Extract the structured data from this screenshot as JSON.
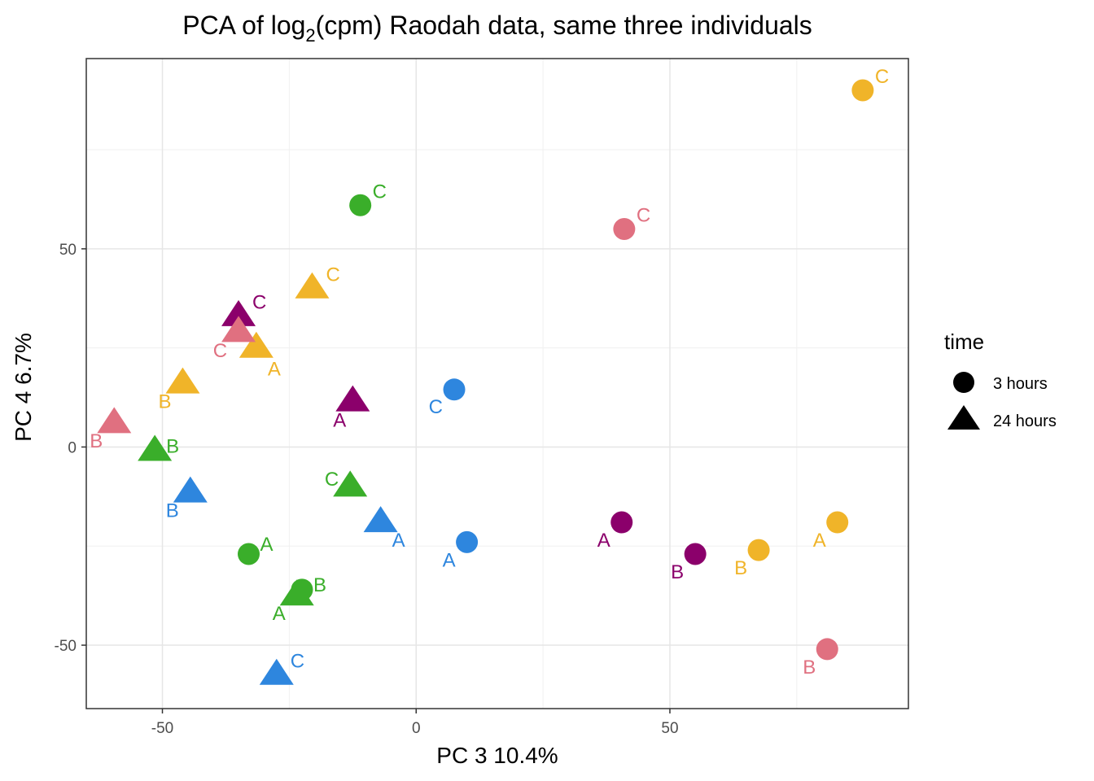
{
  "chart_data": {
    "type": "scatter",
    "title": "PCA of log2(cpm)  Raodah data, same three individuals",
    "title_parts": {
      "before": "PCA of log",
      "subscript": "2",
      "after": "(cpm)  Raodah data, same three individuals"
    },
    "xlabel": "PC 3 10.4%",
    "ylabel": "PC 4 6.7%",
    "xlim": [
      -65,
      97
    ],
    "ylim": [
      -66,
      98
    ],
    "x_ticks": [
      -50,
      0,
      50
    ],
    "y_ticks": [
      -50,
      0,
      50
    ],
    "x_tick_labels": [
      "-50",
      "0",
      "50"
    ],
    "y_tick_labels": [
      "-50",
      "0",
      "50"
    ],
    "grid": true,
    "legend": {
      "title": "time",
      "position": "right",
      "items": [
        {
          "label": "3 hours",
          "shape": "circle"
        },
        {
          "label": "24 hours",
          "shape": "triangle"
        }
      ]
    },
    "colors": {
      "crimson": "#e07080",
      "purple": "#8b006b",
      "green": "#3aae2a",
      "blue": "#2e86de",
      "gold": "#f0b429"
    },
    "points": [
      {
        "x": 88.0,
        "y": 90.0,
        "shape": "circle",
        "color": "gold",
        "label": "C"
      },
      {
        "x": 83.0,
        "y": -19.0,
        "shape": "circle",
        "color": "gold",
        "label": "A"
      },
      {
        "x": 67.5,
        "y": -26.0,
        "shape": "circle",
        "color": "gold",
        "label": "B"
      },
      {
        "x": 41.0,
        "y": 55.0,
        "shape": "circle",
        "color": "crimson",
        "label": "C"
      },
      {
        "x": 81.0,
        "y": -51.0,
        "shape": "circle",
        "color": "crimson",
        "label": "B"
      },
      {
        "x": 40.5,
        "y": -19.0,
        "shape": "circle",
        "color": "purple",
        "label": "A"
      },
      {
        "x": 55.0,
        "y": -27.0,
        "shape": "circle",
        "color": "purple",
        "label": "B"
      },
      {
        "x": 7.5,
        "y": 14.5,
        "shape": "circle",
        "color": "blue",
        "label": "C"
      },
      {
        "x": 10.0,
        "y": -24.0,
        "shape": "circle",
        "color": "blue",
        "label": "A"
      },
      {
        "x": -11.0,
        "y": 61.0,
        "shape": "circle",
        "color": "green",
        "label": "C"
      },
      {
        "x": -33.0,
        "y": -27.0,
        "shape": "circle",
        "color": "green",
        "label": "A"
      },
      {
        "x": -22.5,
        "y": -36.0,
        "shape": "circle",
        "color": "green",
        "label": "B"
      },
      {
        "x": -20.5,
        "y": 40.0,
        "shape": "triangle",
        "color": "gold",
        "label": "C"
      },
      {
        "x": -31.5,
        "y": 25.0,
        "shape": "triangle",
        "color": "gold",
        "label": "A"
      },
      {
        "x": -46.0,
        "y": 16.0,
        "shape": "triangle",
        "color": "gold",
        "label": "B"
      },
      {
        "x": -35.0,
        "y": 33.0,
        "shape": "triangle",
        "color": "purple",
        "label": "C"
      },
      {
        "x": -12.5,
        "y": 11.5,
        "shape": "triangle",
        "color": "purple",
        "label": "A"
      },
      {
        "x": -35.0,
        "y": 29.0,
        "shape": "triangle",
        "color": "crimson",
        "label": "C"
      },
      {
        "x": -59.5,
        "y": 6.0,
        "shape": "triangle",
        "color": "crimson",
        "label": "B"
      },
      {
        "x": -51.5,
        "y": -1.0,
        "shape": "triangle",
        "color": "green",
        "label": "B"
      },
      {
        "x": -13.0,
        "y": -10.0,
        "shape": "triangle",
        "color": "green",
        "label": "C"
      },
      {
        "x": -23.5,
        "y": -37.5,
        "shape": "triangle",
        "color": "green",
        "label": "A"
      },
      {
        "x": -44.5,
        "y": -11.5,
        "shape": "triangle",
        "color": "blue",
        "label": "B"
      },
      {
        "x": -7.0,
        "y": -19.0,
        "shape": "triangle",
        "color": "blue",
        "label": "A"
      },
      {
        "x": -27.5,
        "y": -57.5,
        "shape": "triangle",
        "color": "blue",
        "label": "C"
      }
    ]
  }
}
